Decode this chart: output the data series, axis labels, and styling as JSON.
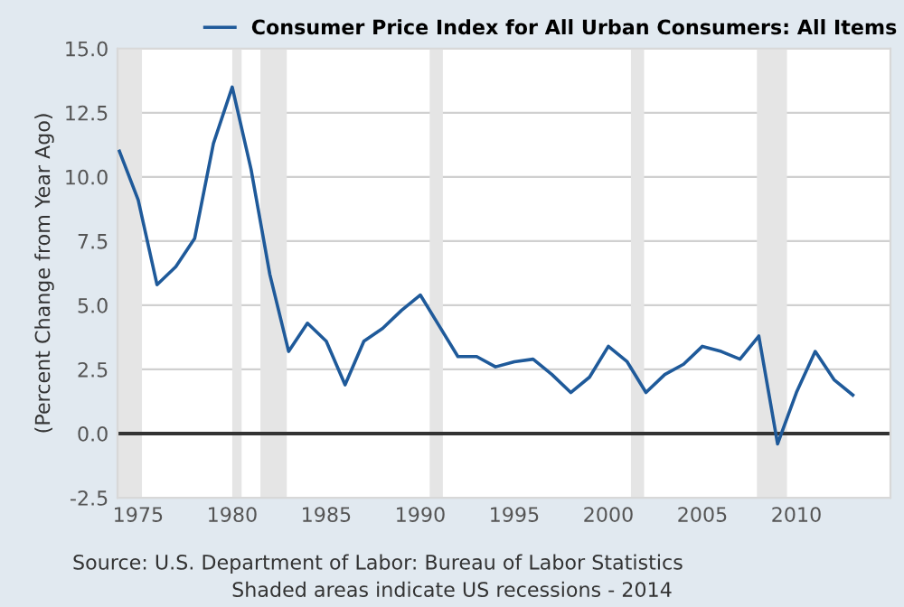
{
  "chart_data": {
    "type": "line",
    "ylabel": "(Percent Change from Year Ago)",
    "x": [
      1974,
      1975,
      1976,
      1977,
      1978,
      1979,
      1980,
      1981,
      1982,
      1983,
      1984,
      1985,
      1986,
      1987,
      1988,
      1989,
      1990,
      1991,
      1992,
      1993,
      1994,
      1995,
      1996,
      1997,
      1998,
      1999,
      2000,
      2001,
      2002,
      2003,
      2004,
      2005,
      2006,
      2007,
      2008,
      2009,
      2010,
      2011,
      2012,
      2013
    ],
    "series": [
      {
        "name": "Consumer Price Index for All Urban Consumers: All Items",
        "color": "#1f5a9a",
        "values": [
          11.0,
          9.1,
          5.8,
          6.5,
          7.6,
          11.3,
          13.5,
          10.3,
          6.2,
          3.2,
          4.3,
          3.6,
          1.9,
          3.6,
          4.1,
          4.8,
          5.4,
          4.2,
          3.0,
          3.0,
          2.6,
          2.8,
          2.9,
          2.3,
          1.6,
          2.2,
          3.4,
          2.8,
          1.6,
          2.3,
          2.7,
          3.4,
          3.2,
          2.9,
          3.8,
          -0.4,
          1.6,
          3.2,
          2.1,
          1.5
        ]
      }
    ],
    "xlim": [
      1973.9,
      2015.0
    ],
    "xticks": [
      1975,
      1980,
      1985,
      1990,
      1995,
      2000,
      2005,
      2010
    ],
    "ylim": [
      -2.5,
      15.0
    ],
    "yticks": [
      -2.5,
      {
        "value": 0,
        "label": "0.0"
      },
      2.5,
      {
        "value": 5,
        "label": "5.0"
      },
      7.5,
      {
        "value": 10,
        "label": "10.0"
      },
      12.5,
      {
        "value": 15,
        "label": "15.0"
      }
    ],
    "grid": "y",
    "legend": "top",
    "marker": "none",
    "line_style": "solid",
    "ref_lines": [
      {
        "axis": "y",
        "value": 0,
        "color": "#333333"
      }
    ],
    "bands": [
      {
        "axis": "x",
        "from": 1973.9,
        "to": 1975.2,
        "color": "#e5e5e5"
      },
      {
        "axis": "x",
        "from": 1980.0,
        "to": 1980.5,
        "color": "#e5e5e5"
      },
      {
        "axis": "x",
        "from": 1981.5,
        "to": 1982.9,
        "color": "#e5e5e5"
      },
      {
        "axis": "x",
        "from": 1990.5,
        "to": 1991.2,
        "color": "#e5e5e5"
      },
      {
        "axis": "x",
        "from": 2001.2,
        "to": 2001.9,
        "color": "#e5e5e5"
      },
      {
        "axis": "x",
        "from": 2007.9,
        "to": 2009.5,
        "color": "#e5e5e5"
      }
    ],
    "annotations": [
      "Source: U.S. Department of Labor: Bureau of Labor Statistics",
      "Shaded areas indicate US recessions - 2014"
    ]
  }
}
